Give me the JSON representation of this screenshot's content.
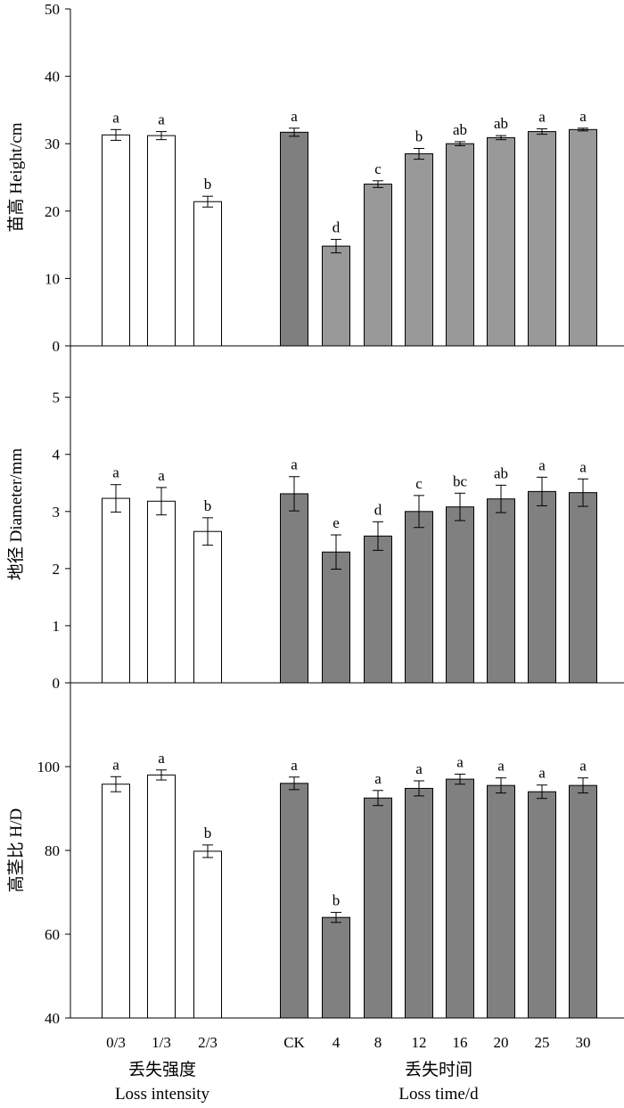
{
  "chart_data": {
    "type": "bar",
    "categories": [
      "0/3",
      "1/3",
      "2/3",
      "CK",
      "4",
      "8",
      "12",
      "16",
      "20",
      "25",
      "30"
    ],
    "group_labels": [
      {
        "zh": "丢失强度",
        "en": "Loss  intensity"
      },
      {
        "zh": "丢失时间",
        "en": "Loss time/d"
      }
    ],
    "colors": {
      "intensity_bar": "#ffffff",
      "ck_bar": "#7f7f7f",
      "time_bar": "#999999",
      "time_bar_panel2": "#808080",
      "edge": "#000000"
    },
    "panels": [
      {
        "ylabel": "苗高 Height/cm",
        "ylim": [
          0,
          50
        ],
        "yticks": [
          0,
          10,
          20,
          30,
          40,
          50
        ],
        "values": [
          31.3,
          31.2,
          21.4,
          31.7,
          14.8,
          24.0,
          28.5,
          30.0,
          30.9,
          31.8,
          32.1
        ],
        "errors": [
          0.8,
          0.6,
          0.8,
          0.6,
          1.0,
          0.5,
          0.8,
          0.3,
          0.3,
          0.4,
          0.2
        ],
        "letters": [
          "a",
          "a",
          "b",
          "a",
          "d",
          "c",
          "b",
          "ab",
          "ab",
          "a",
          "a"
        ]
      },
      {
        "ylabel": "地径  Diameter/mm",
        "ylim": [
          0,
          5.9
        ],
        "yticks": [
          0,
          1,
          2,
          3,
          4,
          5
        ],
        "values": [
          3.23,
          3.18,
          2.65,
          3.31,
          2.29,
          2.57,
          3.0,
          3.08,
          3.22,
          3.35,
          3.33
        ],
        "errors": [
          0.24,
          0.24,
          0.24,
          0.3,
          0.3,
          0.25,
          0.28,
          0.24,
          0.24,
          0.25,
          0.24
        ],
        "letters": [
          "a",
          "a",
          "b",
          "a",
          "e",
          "d",
          "c",
          "bc",
          "ab",
          "a",
          "a"
        ]
      },
      {
        "ylabel": "高茎比  H/D",
        "ylim": [
          40,
          120
        ],
        "yticks": [
          40,
          60,
          80,
          100
        ],
        "values": [
          95.8,
          98.0,
          79.8,
          96.0,
          64.0,
          92.5,
          94.8,
          97.0,
          95.5,
          94.0,
          95.5
        ],
        "errors": [
          1.8,
          1.2,
          1.5,
          1.5,
          1.2,
          1.8,
          1.8,
          1.2,
          1.8,
          1.6,
          1.8
        ],
        "letters": [
          "a",
          "a",
          "b",
          "a",
          "b",
          "a",
          "a",
          "a",
          "a",
          "a",
          "a"
        ]
      }
    ]
  }
}
